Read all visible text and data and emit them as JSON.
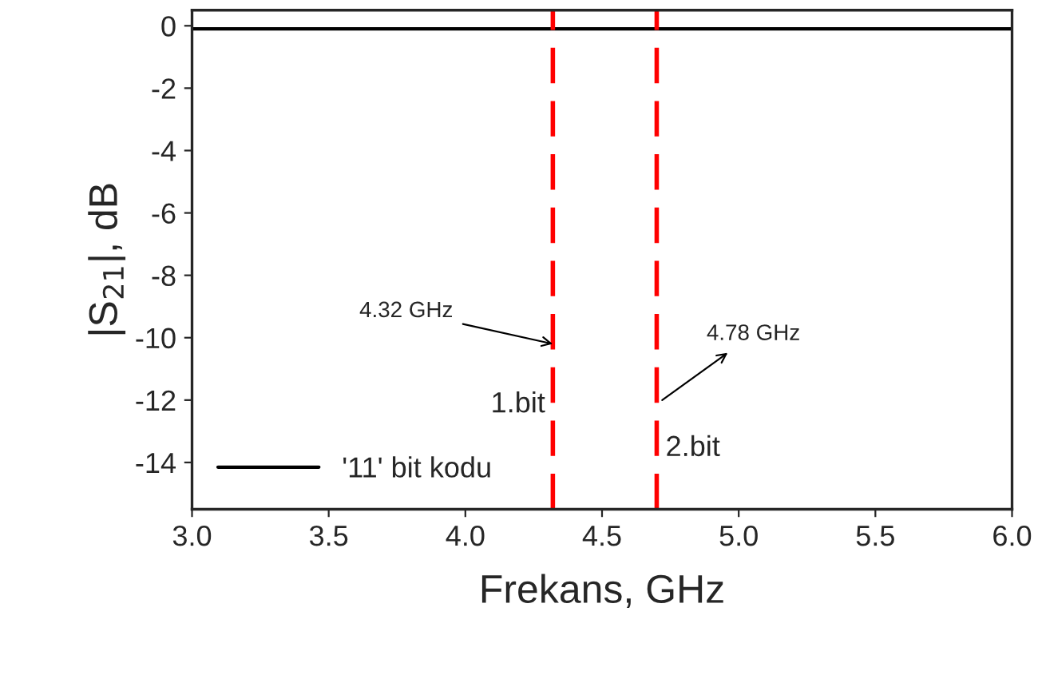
{
  "chart_data": {
    "type": "line",
    "xlabel": "Frekans, GHz",
    "ylabel": "|S$_{21}$|, dB",
    "series": [
      {
        "name": "'11' bit kodu",
        "color": "#000000",
        "x": [
          3.0,
          6.0
        ],
        "values": [
          -0.1,
          -0.1
        ]
      }
    ],
    "xlim": [
      3.0,
      6.0
    ],
    "xticks": [
      {
        "value": 3.0,
        "label": "3.0"
      },
      {
        "value": 3.5,
        "label": "3.5"
      },
      {
        "value": 4.0,
        "label": "4.0"
      },
      {
        "value": 4.5,
        "label": "4.5"
      },
      {
        "value": 5.0,
        "label": "5.0"
      },
      {
        "value": 5.5,
        "label": "5.5"
      },
      {
        "value": 6.0,
        "label": "6.0"
      }
    ],
    "ylim": [
      -15.5,
      0.5
    ],
    "yticks": [
      -14,
      -12,
      -10,
      -8,
      -6,
      -4,
      -2,
      0
    ],
    "ref_lines": [
      {
        "axis": "x",
        "value": 4.32,
        "color": "#ff0000",
        "line_style": "dashed"
      },
      {
        "axis": "x",
        "value": 4.7,
        "color": "#ff0000",
        "line_style": "dashed"
      }
    ],
    "annotations": [
      {
        "text": "4.32 GHz",
        "x": 4.32,
        "y": -10.2
      },
      {
        "text": "1.bit",
        "x": 4.32,
        "y": -11.3
      },
      {
        "text": "4.78 GHz",
        "x": 4.72,
        "y": -12.0
      },
      {
        "text": "2.bit",
        "x": 4.7,
        "y": -12.7
      }
    ],
    "legend": "bottom left",
    "grid": false,
    "marker": "none",
    "line_style": "solid"
  }
}
